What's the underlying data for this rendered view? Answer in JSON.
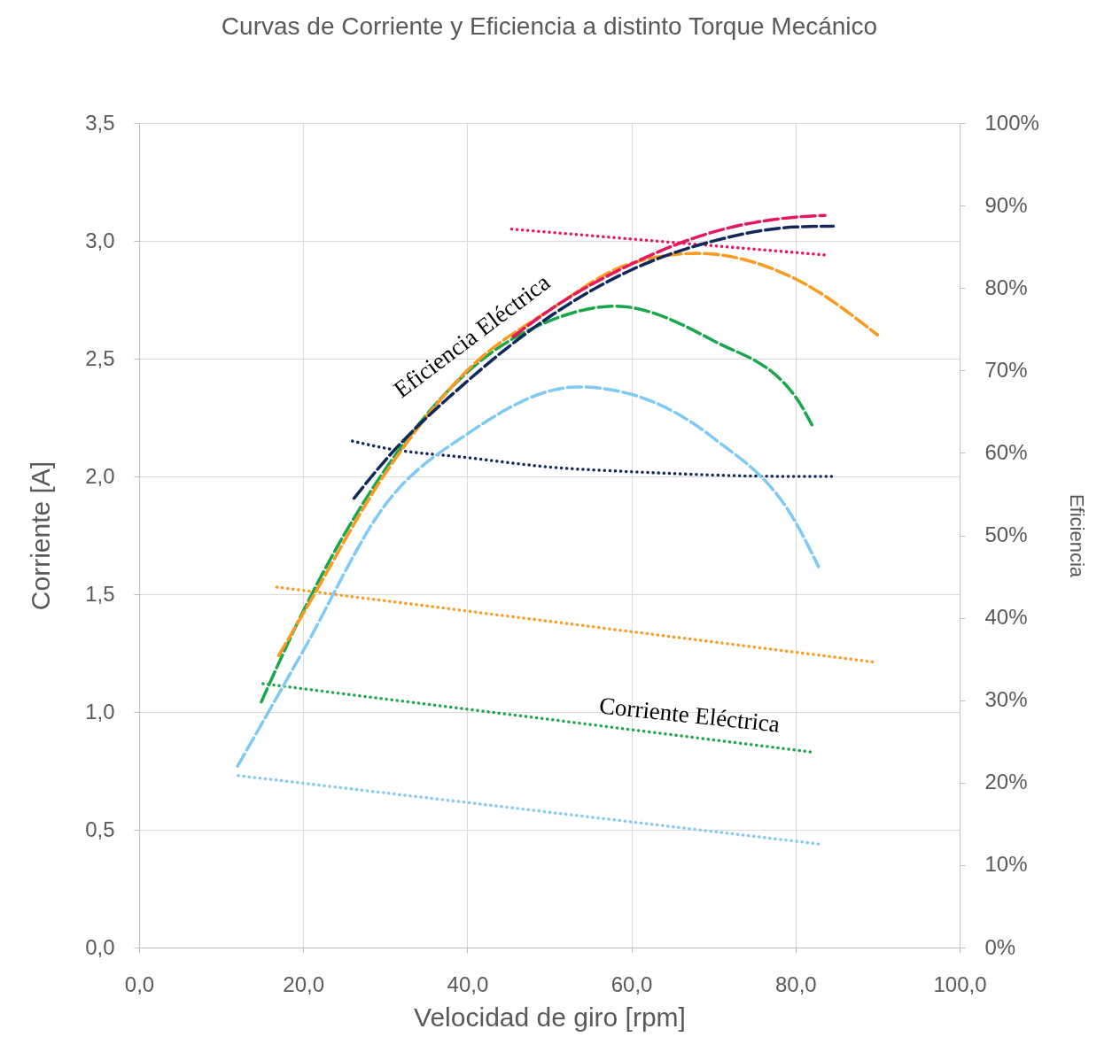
{
  "chart_data": {
    "type": "line",
    "title": "Curvas de Corriente y Eficiencia a distinto Torque Mecánico",
    "xlabel": "Velocidad de giro [rpm]",
    "ylabel": "Corriente [A]",
    "y2label": "Eficiencia",
    "annotations": [
      "Eficiencia Eléctrica",
      "Corriente Eléctrica"
    ],
    "xlim": [
      0,
      100
    ],
    "xticks": [
      {
        "value": 0,
        "label": "0,0"
      },
      {
        "value": 20,
        "label": "20,0"
      },
      {
        "value": 40,
        "label": "40,0"
      },
      {
        "value": 60,
        "label": "60,0"
      },
      {
        "value": 80,
        "label": "80,0"
      },
      {
        "value": 100,
        "label": "100,0"
      }
    ],
    "ylim": [
      0,
      3.5
    ],
    "yticks": [
      {
        "value": 0,
        "label": "0,0"
      },
      {
        "value": 0.5,
        "label": "0,5"
      },
      {
        "value": 1,
        "label": "1,0"
      },
      {
        "value": 1.5,
        "label": "1,5"
      },
      {
        "value": 2,
        "label": "2,0"
      },
      {
        "value": 2.5,
        "label": "2,5"
      },
      {
        "value": 3,
        "label": "3,0"
      },
      {
        "value": 3.5,
        "label": "3,5"
      }
    ],
    "y2lim": [
      0,
      100
    ],
    "y2ticks": [
      {
        "value": 0,
        "label": "0%"
      },
      {
        "value": 10,
        "label": "10%"
      },
      {
        "value": 20,
        "label": "20%"
      },
      {
        "value": 30,
        "label": "30%"
      },
      {
        "value": 40,
        "label": "40%"
      },
      {
        "value": 50,
        "label": "50%"
      },
      {
        "value": 60,
        "label": "60%"
      },
      {
        "value": 70,
        "label": "70%"
      },
      {
        "value": 80,
        "label": "80%"
      },
      {
        "value": 90,
        "label": "90%"
      },
      {
        "value": 100,
        "label": "100%"
      }
    ],
    "grid": true,
    "marker": "none",
    "series": [
      {
        "color": "#e8175d",
        "line_style": "dotted",
        "x": [
          45.4,
          83.7
        ],
        "values": [
          3.05,
          2.94
        ]
      },
      {
        "color": "#10285a",
        "line_style": "dotted",
        "x": [
          26,
          30,
          40,
          50,
          60,
          80,
          84.7
        ],
        "values": [
          2.15,
          2.12,
          2.08,
          2.04,
          2.02,
          2.0,
          2.0
        ]
      },
      {
        "color": "#fb9a1f",
        "line_style": "dotted",
        "x": [
          16.8,
          90
        ],
        "values": [
          1.53,
          1.21
        ]
      },
      {
        "color": "#1aa64a",
        "line_style": "dotted",
        "x": [
          15.1,
          81.9
        ],
        "values": [
          1.12,
          0.83
        ]
      },
      {
        "color": "#7fc9f4",
        "line_style": "dotted",
        "x": [
          12.1,
          82.8
        ],
        "values": [
          0.73,
          0.44
        ]
      },
      {
        "color": "#7fc9f4",
        "line_style": "dashed",
        "axis": "y2",
        "x": [
          12,
          20,
          30,
          40,
          53.5,
          60,
          70,
          80,
          82.8
        ],
        "values": [
          22,
          36,
          53.7,
          62.3,
          68,
          67.1,
          61.8,
          51.6,
          46.2
        ]
      },
      {
        "color": "#1aa64a",
        "line_style": "dashed",
        "axis": "y2",
        "x": [
          14.9,
          20,
          30,
          40,
          50,
          58,
          70,
          80,
          82
        ],
        "values": [
          29.8,
          40.8,
          58,
          69.8,
          76,
          77.8,
          73.6,
          66.8,
          63.4
        ]
      },
      {
        "color": "#fb9a1f",
        "line_style": "dashed",
        "axis": "y2",
        "x": [
          17,
          20,
          30,
          40,
          50,
          60,
          68,
          80,
          90
        ],
        "values": [
          35.4,
          40.5,
          57.5,
          70,
          77.3,
          83,
          84.2,
          81.1,
          74.3
        ]
      },
      {
        "color": "#e8175d",
        "line_style": "dashed",
        "axis": "y2",
        "x": [
          45.6,
          50,
          60,
          70,
          80,
          83.6
        ],
        "values": [
          74.1,
          77.3,
          82.9,
          86.8,
          88.6,
          88.8
        ]
      },
      {
        "color": "#10285a",
        "line_style": "dashed",
        "axis": "y2",
        "x": [
          26.2,
          30,
          40,
          50,
          60,
          70,
          80,
          84.6
        ],
        "values": [
          54.5,
          59.1,
          68.7,
          76.5,
          82.2,
          85.7,
          87.4,
          87.5
        ]
      }
    ]
  }
}
